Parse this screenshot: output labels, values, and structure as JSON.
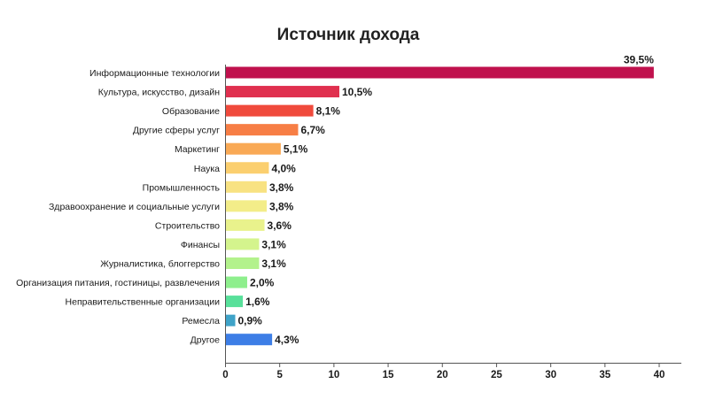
{
  "chart_data": {
    "type": "bar",
    "orientation": "horizontal",
    "title": "Источник дохода",
    "categories": [
      "Информационные технологии",
      "Культура, искусство, дизайн",
      "Образование",
      "Другие сферы услуг",
      "Маркетинг",
      "Наука",
      "Промышленность",
      "Здравоохранение и социальные услуги",
      "Строительство",
      "Финансы",
      "Журналистика, блоггерство",
      "Организация питания, гостиницы, развлечения",
      "Неправительственные организации",
      "Ремесла",
      "Другое"
    ],
    "values": [
      39.5,
      10.5,
      8.1,
      6.7,
      5.1,
      4.0,
      3.8,
      3.8,
      3.6,
      3.1,
      3.1,
      2.0,
      1.6,
      0.9,
      4.3
    ],
    "value_labels": [
      "39,5%",
      "10,5%",
      "8,1%",
      "6,7%",
      "5,1%",
      "4,0%",
      "3,8%",
      "3,8%",
      "3,6%",
      "3,1%",
      "3,1%",
      "2,0%",
      "1,6%",
      "0,9%",
      "4,3%"
    ],
    "colors": [
      "#c0114d",
      "#e0304f",
      "#f04a3c",
      "#f77e45",
      "#f9a955",
      "#fbcf6f",
      "#f8e282",
      "#f3ed89",
      "#e9f28c",
      "#d4f48d",
      "#b3f28c",
      "#8eef8d",
      "#58e09a",
      "#3fa3c8",
      "#3d7ee6"
    ],
    "xlim": [
      0,
      40
    ],
    "xticks": [
      0,
      5,
      10,
      15,
      20,
      25,
      30,
      35,
      40
    ],
    "grid": false,
    "legend": "none"
  }
}
